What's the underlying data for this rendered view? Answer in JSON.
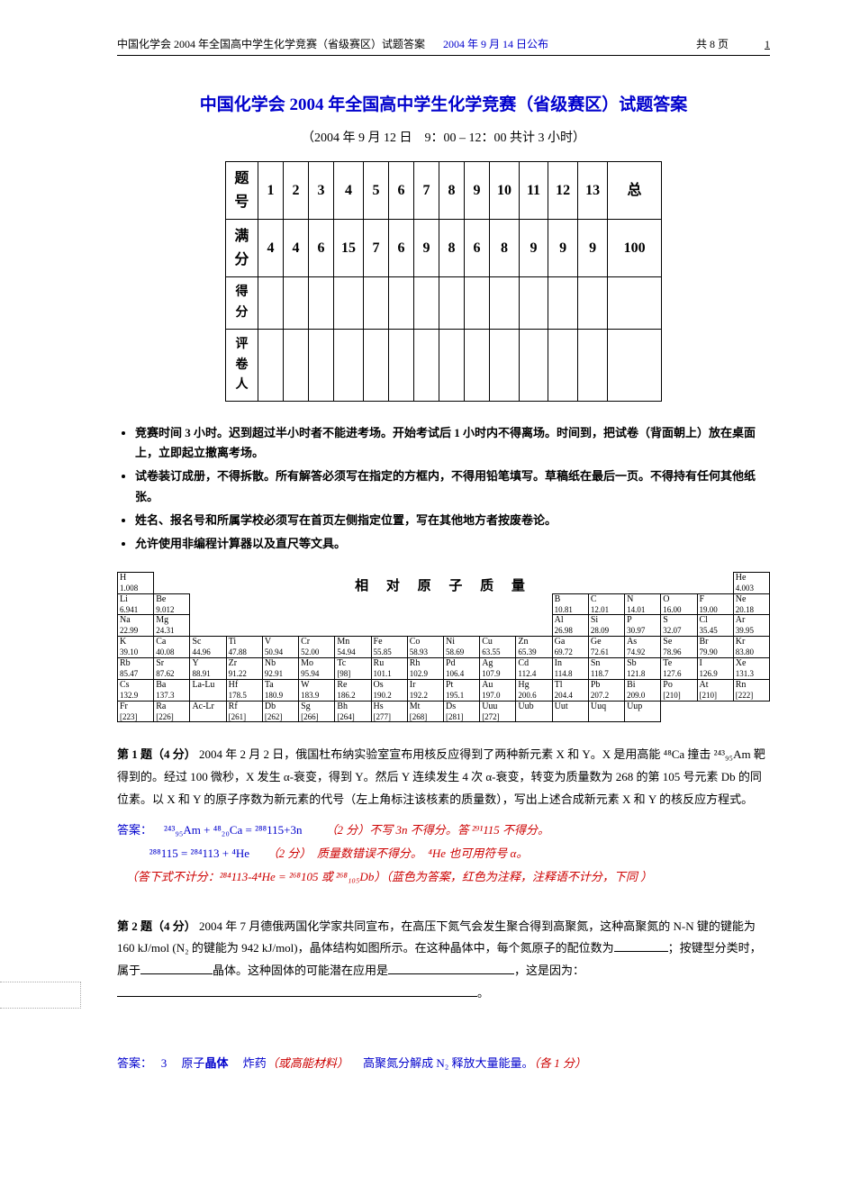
{
  "header": {
    "left": "中国化学会 2004 年全国高中学生化学竞赛（省级赛区）试题答案",
    "date": "2004 年 9 月 14 日公布",
    "pages": "共 8 页",
    "pagenum": "1"
  },
  "title": "中国化学会 2004 年全国高中学生化学竞赛（省级赛区）试题答案",
  "subtitle": "（2004 年 9 月 12 日　9：00 – 12：00 共计 3 小时）",
  "score_table": {
    "row_labels": [
      "题号",
      "满分",
      "得分",
      "评卷人"
    ],
    "columns": [
      "1",
      "2",
      "3",
      "4",
      "5",
      "6",
      "7",
      "8",
      "9",
      "10",
      "11",
      "12",
      "13"
    ],
    "total_label": "总",
    "full_marks": [
      "4",
      "4",
      "6",
      "15",
      "7",
      "6",
      "9",
      "8",
      "6",
      "8",
      "9",
      "9",
      "9"
    ],
    "total_full": "100"
  },
  "rules": [
    "竞赛时间 3 小时。迟到超过半小时者不能进考场。开始考试后 1 小时内不得离场。时间到，把试卷（背面朝上）放在桌面上，立即起立撤离考场。",
    "试卷装订成册，不得拆散。所有解答必须写在指定的方框内，不得用铅笔填写。草稿纸在最后一页。不得持有任何其他纸张。",
    "姓名、报名号和所属学校必须写在首页左侧指定位置，写在其他地方者按废卷论。",
    "允许使用非编程计算器以及直尺等文具。"
  ],
  "pt_title": "相 对 原 子 质 量",
  "periodic_table": {
    "rows": [
      [
        [
          "H",
          "1.008"
        ],
        null,
        null,
        null,
        null,
        null,
        null,
        null,
        null,
        null,
        null,
        null,
        null,
        null,
        null,
        null,
        null,
        [
          "He",
          "4.003"
        ]
      ],
      [
        [
          "Li",
          "6.941"
        ],
        [
          "Be",
          "9.012"
        ],
        null,
        null,
        null,
        null,
        null,
        null,
        null,
        null,
        null,
        null,
        [
          "B",
          "10.81"
        ],
        [
          "C",
          "12.01"
        ],
        [
          "N",
          "14.01"
        ],
        [
          "O",
          "16.00"
        ],
        [
          "F",
          "19.00"
        ],
        [
          "Ne",
          "20.18"
        ]
      ],
      [
        [
          "Na",
          "22.99"
        ],
        [
          "Mg",
          "24.31"
        ],
        null,
        null,
        null,
        null,
        null,
        null,
        null,
        null,
        null,
        null,
        [
          "Al",
          "26.98"
        ],
        [
          "Si",
          "28.09"
        ],
        [
          "P",
          "30.97"
        ],
        [
          "S",
          "32.07"
        ],
        [
          "Cl",
          "35.45"
        ],
        [
          "Ar",
          "39.95"
        ]
      ],
      [
        [
          "K",
          "39.10"
        ],
        [
          "Ca",
          "40.08"
        ],
        [
          "Sc",
          "44.96"
        ],
        [
          "Ti",
          "47.88"
        ],
        [
          "V",
          "50.94"
        ],
        [
          "Cr",
          "52.00"
        ],
        [
          "Mn",
          "54.94"
        ],
        [
          "Fe",
          "55.85"
        ],
        [
          "Co",
          "58.93"
        ],
        [
          "Ni",
          "58.69"
        ],
        [
          "Cu",
          "63.55"
        ],
        [
          "Zn",
          "65.39"
        ],
        [
          "Ga",
          "69.72"
        ],
        [
          "Ge",
          "72.61"
        ],
        [
          "As",
          "74.92"
        ],
        [
          "Se",
          "78.96"
        ],
        [
          "Br",
          "79.90"
        ],
        [
          "Kr",
          "83.80"
        ]
      ],
      [
        [
          "Rb",
          "85.47"
        ],
        [
          "Sr",
          "87.62"
        ],
        [
          "Y",
          "88.91"
        ],
        [
          "Zr",
          "91.22"
        ],
        [
          "Nb",
          "92.91"
        ],
        [
          "Mo",
          "95.94"
        ],
        [
          "Tc",
          "[98]"
        ],
        [
          "Ru",
          "101.1"
        ],
        [
          "Rh",
          "102.9"
        ],
        [
          "Pd",
          "106.4"
        ],
        [
          "Ag",
          "107.9"
        ],
        [
          "Cd",
          "112.4"
        ],
        [
          "In",
          "114.8"
        ],
        [
          "Sn",
          "118.7"
        ],
        [
          "Sb",
          "121.8"
        ],
        [
          "Te",
          "127.6"
        ],
        [
          "I",
          "126.9"
        ],
        [
          "Xe",
          "131.3"
        ]
      ],
      [
        [
          "Cs",
          "132.9"
        ],
        [
          "Ba",
          "137.3"
        ],
        [
          "La-Lu",
          ""
        ],
        [
          "Hf",
          "178.5"
        ],
        [
          "Ta",
          "180.9"
        ],
        [
          "W",
          "183.9"
        ],
        [
          "Re",
          "186.2"
        ],
        [
          "Os",
          "190.2"
        ],
        [
          "Ir",
          "192.2"
        ],
        [
          "Pt",
          "195.1"
        ],
        [
          "Au",
          "197.0"
        ],
        [
          "Hg",
          "200.6"
        ],
        [
          "Tl",
          "204.4"
        ],
        [
          "Pb",
          "207.2"
        ],
        [
          "Bi",
          "209.0"
        ],
        [
          "Po",
          "[210]"
        ],
        [
          "At",
          "[210]"
        ],
        [
          "Rn",
          "[222]"
        ]
      ],
      [
        [
          "Fr",
          "[223]"
        ],
        [
          "Ra",
          "[226]"
        ],
        [
          "Ac-Lr",
          ""
        ],
        [
          "Rf",
          "[261]"
        ],
        [
          "Db",
          "[262]"
        ],
        [
          "Sg",
          "[266]"
        ],
        [
          "Bh",
          "[264]"
        ],
        [
          "Hs",
          "[277]"
        ],
        [
          "Mt",
          "[268]"
        ],
        [
          "Ds",
          "[281]"
        ],
        [
          "Uuu",
          "[272]"
        ],
        [
          "Uub",
          ""
        ],
        [
          "Uut",
          ""
        ],
        [
          "Uuq",
          ""
        ],
        [
          "Uup",
          ""
        ],
        null,
        null,
        null
      ]
    ]
  },
  "q1": {
    "label": "第 1 题（4 分）",
    "text": "2004 年 2 月 2 日，俄国杜布纳实验室宣布用核反应得到了两种新元素 X 和 Y。X 是用高能 ⁴⁸Ca 撞击 ²⁴³₉₅Am 靶得到的。经过 100 微秒，X 发生 α-衰变，得到 Y。然后 Y 连续发生 4 次 α-衰变，转变为质量数为 268 的第 105 号元素 Db 的同位素。以 X 和 Y 的原子序数为新元素的代号（左上角标注该核素的质量数），写出上述合成新元素 X 和 Y 的核反应方程式。",
    "ans_label": "答案：",
    "eq1_blue": "²⁴³₉₅Am + ⁴⁸₂₀Ca = ²⁸⁸115+3n",
    "eq1_red": "（2 分）不写 3n 不得分。答 ²⁹¹115 不得分。",
    "eq2_blue": "²⁸⁸115 = ²⁸⁴113 + ⁴He",
    "eq2_red": "（2 分）　质量数错误不得分。　⁴He 也可用符号 α。",
    "note_red": "（答下式不计分：²⁸⁴113-4⁴He = ²⁶⁸105 或 ²⁶⁸₁₀₅Db）（蓝色为答案，红色为注释，注释语不计分，下同 ）"
  },
  "q2": {
    "label": "第 2 题（4 分）",
    "text1": "2004 年 7 月德俄两国化学家共同宣布，在高压下氮气会发生聚合得到高聚氮，这种高聚氮的 N-N 键的键能为 160 kJ/mol (N₂ 的键能为 942 kJ/mol)，晶体结构如图所示。在这种晶体中，每个氮原子的配位数为",
    "blank1": "_____",
    "text2": "；按键型分类时，属于",
    "blank2": "__________",
    "text3": "晶体。这种固体的可能潜在应用是",
    "blank3": "__________________",
    "text4": "，这是因为：",
    "blank4": "___________________________________________________",
    "text5": "。",
    "ans_label": "答案：",
    "a1": "3",
    "a2": "原子",
    "a2_bold": "晶体",
    "a3": "炸药",
    "a3_red": "（或高能材料）",
    "a4": "高聚氮分解成 N₂ 释放大量能量。",
    "marks": "（各 1 分）"
  }
}
